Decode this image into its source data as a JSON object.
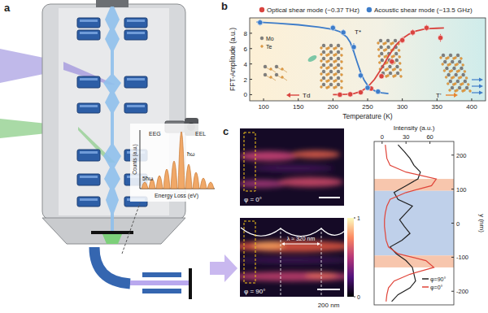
{
  "panel_labels": [
    "a",
    "b",
    "c"
  ],
  "schematic": {
    "inset": {
      "series_labels": [
        "EEG",
        "EEL"
      ],
      "peak_labels": [
        "ħω",
        "5ħω"
      ],
      "y_label": "Counts (a.u.)",
      "x_label": "Energy Loss (eV)"
    }
  },
  "chart_data": [
    {
      "type": "scatter",
      "x_label": "Temperature (K)",
      "y_label": "FFT-Amplitude (a.u.)",
      "xlim": [
        80,
        420
      ],
      "xticks": [
        100,
        150,
        200,
        250,
        300,
        350,
        400
      ],
      "ylim": [
        -0.8,
        10
      ],
      "yticks": [
        0,
        2,
        4,
        6,
        8
      ],
      "legend": "top",
      "annotations": [
        "T*",
        "Mo",
        "Te",
        "Td",
        "T'"
      ],
      "series": [
        {
          "name": "Optical shear mode (~0.37 THz)",
          "color": "#d9443f",
          "marker": "circle",
          "x": [
            210,
            225,
            240,
            255,
            270,
            285,
            300,
            315,
            335,
            355
          ],
          "values": [
            0,
            0.05,
            0.3,
            0.8,
            2.4,
            4.3,
            7.1,
            8.1,
            8.7,
            7.4
          ],
          "errors": [
            0.2,
            0.2,
            0.2,
            0.3,
            0.3,
            0.4,
            0.4,
            0.4,
            0.4,
            0.5
          ]
        },
        {
          "name": "Acoustic shear mode (~13.5 GHz)",
          "color": "#3d7cc9",
          "marker": "circle",
          "x": [
            95,
            200,
            215,
            230,
            240,
            250,
            265
          ],
          "values": [
            9.4,
            8.7,
            8.1,
            6.2,
            2.5,
            0.9,
            0.4
          ],
          "errors": [
            0.4,
            0.4,
            0.4,
            0.5,
            0.4,
            0.3,
            0.3
          ]
        },
        {
          "type": "line",
          "color": "#d9443f",
          "x": [
            200,
            210,
            220,
            230,
            240,
            250,
            260,
            270,
            280,
            290,
            300,
            310,
            320,
            330,
            340,
            350,
            360
          ],
          "values": [
            0,
            0,
            0.05,
            0.15,
            0.4,
            1.0,
            2.0,
            3.4,
            5.0,
            6.4,
            7.3,
            7.9,
            8.3,
            8.5,
            8.6,
            8.65,
            8.7
          ]
        },
        {
          "type": "line",
          "color": "#3d7cc9",
          "x": [
            90,
            120,
            150,
            180,
            200,
            210,
            220,
            225,
            230,
            235,
            240,
            245,
            250,
            260,
            270,
            280
          ],
          "values": [
            9.45,
            9.3,
            9.1,
            8.8,
            8.5,
            8.2,
            7.5,
            6.8,
            5.6,
            4.2,
            2.9,
            1.9,
            1.2,
            0.5,
            0.25,
            0.15
          ]
        }
      ]
    },
    {
      "type": "line",
      "x_label": "Intensity (a.u.)",
      "y_label": "y (nm)",
      "xlim": [
        -10,
        90
      ],
      "xticks": [
        0,
        30,
        60
      ],
      "ylim": [
        -240,
        240
      ],
      "yticks": [
        -200,
        -100,
        0,
        100,
        200
      ],
      "legend": "bottom-right",
      "y": [
        -230,
        -210,
        -190,
        -170,
        -150,
        -130,
        -110,
        -90,
        -70,
        -50,
        -30,
        -10,
        10,
        30,
        50,
        70,
        90,
        110,
        130,
        150,
        170,
        190,
        210,
        230
      ],
      "series": [
        {
          "name": "φ=90°",
          "color": "#222222",
          "values": [
            12,
            20,
            35,
            42,
            40,
            38,
            30,
            18,
            10,
            25,
            35,
            28,
            22,
            30,
            38,
            20,
            15,
            30,
            45,
            48,
            40,
            35,
            28,
            20
          ]
        },
        {
          "name": "φ=0°",
          "color": "#e0453a",
          "values": [
            5,
            6,
            8,
            15,
            35,
            65,
            55,
            20,
            8,
            5,
            4,
            3,
            3,
            4,
            6,
            10,
            30,
            62,
            68,
            30,
            10,
            6,
            5,
            4
          ]
        }
      ],
      "bands": [
        {
          "from": 95,
          "to": 130,
          "color": "#f7c6ad"
        },
        {
          "from": -95,
          "to": 95,
          "color": "#bfd0ea"
        },
        {
          "from": -130,
          "to": -95,
          "color": "#f7c6ad"
        }
      ]
    }
  ],
  "images": {
    "labels": [
      "φ = 0°",
      "φ = 90°"
    ],
    "wavelength": "λ ≈ 320 nm",
    "scale_bar": "200 nm",
    "colorbar": {
      "range": [
        0,
        1
      ],
      "ticks": [
        0,
        1
      ]
    }
  }
}
